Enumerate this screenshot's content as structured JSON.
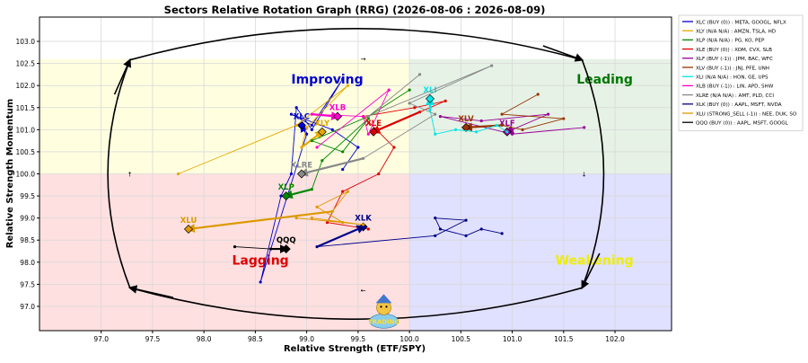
{
  "chart_data": {
    "type": "scatter",
    "title": "Sectors Relative Rotation Graph (RRG) (2026-08-06 : 2026-08-09)",
    "xlabel": "Relative Strength (ETF/SPY)",
    "ylabel": "Relative Strength Momentum",
    "xlim": [
      96.4,
      102.55
    ],
    "ylim": [
      96.45,
      103.55
    ],
    "xticks": [
      97.0,
      97.5,
      98.0,
      98.5,
      99.0,
      99.5,
      100.0,
      100.5,
      101.0,
      101.5,
      102.0
    ],
    "yticks": [
      97.0,
      97.5,
      98.0,
      98.5,
      99.0,
      99.5,
      100.0,
      100.5,
      101.0,
      101.5,
      102.0,
      102.5,
      103.0
    ],
    "grid": true,
    "legend_position": "outside-right",
    "quadrants": [
      {
        "name": "Improving",
        "label_x": 99.2,
        "label_y": 102.15,
        "label_color": "#0000cc",
        "fill": "#ffffe0"
      },
      {
        "name": "Leading",
        "label_x": 101.9,
        "label_y": 102.15,
        "label_color": "#007700",
        "fill": "#e6f2e6"
      },
      {
        "name": "Lagging",
        "label_x": 98.55,
        "label_y": 98.05,
        "label_color": "#dd0000",
        "fill": "#ffe0e0"
      },
      {
        "name": "Weakening",
        "label_x": 101.8,
        "label_y": 98.05,
        "label_color": "#eeee00",
        "fill": "#e0e0ff"
      }
    ],
    "series": [
      {
        "name": "XLC (BUY (0)) : META, GOOGL, NFLX",
        "label": "XLC",
        "color": "#0000cc",
        "points": [
          [
            99.35,
            100.1
          ],
          [
            99.5,
            100.6
          ],
          [
            99.25,
            101.0
          ],
          [
            98.85,
            101.35
          ],
          [
            99.05,
            101.1
          ],
          [
            99.35,
            102.15
          ],
          [
            99.05,
            101.0
          ],
          [
            98.9,
            101.5
          ],
          [
            98.85,
            100.0
          ],
          [
            98.75,
            99.5
          ],
          [
            98.55,
            97.55
          ],
          [
            99.0,
            100.9
          ],
          [
            98.95,
            101.1
          ]
        ]
      },
      {
        "name": "XLY (N/A N/A) : AMZN, TSLA, HD",
        "label": "XLY",
        "color": "#e6a800",
        "points": [
          [
            97.75,
            100.0
          ],
          [
            98.9,
            101.1
          ],
          [
            99.4,
            102.0
          ],
          [
            99.0,
            101.05
          ],
          [
            98.95,
            100.6
          ],
          [
            99.15,
            100.95
          ]
        ]
      },
      {
        "name": "XLP (N/A N/A) : PG, KO, PEP",
        "label": "XLP",
        "color": "#008800",
        "points": [
          [
            100.0,
            101.9
          ],
          [
            99.6,
            101.3
          ],
          [
            99.05,
            100.75
          ],
          [
            99.35,
            100.5
          ],
          [
            99.6,
            101.25
          ],
          [
            99.15,
            100.3
          ],
          [
            99.05,
            99.65
          ],
          [
            98.8,
            99.5
          ]
        ]
      },
      {
        "name": "XLE (BUY (0)) : XOM, CVX, SLB",
        "label": "XLE",
        "color": "#dd0000",
        "points": [
          [
            99.6,
            98.75
          ],
          [
            99.2,
            98.9
          ],
          [
            99.35,
            99.6
          ],
          [
            99.7,
            100.0
          ],
          [
            99.85,
            100.6
          ],
          [
            99.55,
            101.3
          ],
          [
            100.05,
            101.5
          ],
          [
            100.35,
            101.65
          ],
          [
            100.1,
            101.4
          ],
          [
            99.65,
            100.95
          ]
        ]
      },
      {
        "name": "XLF (BUY (-1)) : JPM, BAC, WFC",
        "label": "XLF",
        "color": "#990099",
        "points": [
          [
            101.7,
            101.05
          ],
          [
            101.0,
            100.9
          ],
          [
            100.3,
            101.3
          ],
          [
            100.7,
            101.2
          ],
          [
            101.35,
            101.35
          ],
          [
            101.0,
            101.0
          ],
          [
            100.95,
            100.95
          ]
        ]
      },
      {
        "name": "XLV (BUY (-1)) : JNJ, PFE, UNH",
        "label": "XLV",
        "color": "#993300",
        "points": [
          [
            101.25,
            101.8
          ],
          [
            100.9,
            101.35
          ],
          [
            101.5,
            101.25
          ],
          [
            101.1,
            101.0
          ],
          [
            100.9,
            101.1
          ],
          [
            100.55,
            101.05
          ]
        ]
      },
      {
        "name": "XLI (N/A N/A) : HON, GE, UPS",
        "label": "XLI",
        "color": "#00e5e5",
        "points": [
          [
            100.95,
            100.95
          ],
          [
            100.85,
            101.1
          ],
          [
            100.65,
            100.95
          ],
          [
            100.45,
            101.0
          ],
          [
            100.25,
            100.9
          ],
          [
            100.2,
            101.45
          ],
          [
            100.2,
            101.7
          ]
        ]
      },
      {
        "name": "XLB (BUY (-1)) : LIN, APD, SHW",
        "label": "XLB",
        "color": "#ff00cc",
        "points": [
          [
            99.1,
            100.6
          ],
          [
            99.8,
            101.9
          ],
          [
            99.6,
            100.9
          ],
          [
            99.55,
            101.3
          ],
          [
            99.05,
            101.35
          ],
          [
            99.3,
            101.3
          ]
        ]
      },
      {
        "name": "XLRE (N/A N/A) : AMT, PLD, CCI",
        "label": "XLRE",
        "color": "#888888",
        "points": [
          [
            100.1,
            102.25
          ],
          [
            99.6,
            101.3
          ],
          [
            100.8,
            102.45
          ],
          [
            100.0,
            101.6
          ],
          [
            100.25,
            101.35
          ],
          [
            99.55,
            100.35
          ],
          [
            98.95,
            100.0
          ]
        ]
      },
      {
        "name": "XLK (BUY (0)) : AAPL, MSFT, NVDA",
        "label": "XLK",
        "color": "#000088",
        "points": [
          [
            100.9,
            98.65
          ],
          [
            100.7,
            98.75
          ],
          [
            100.55,
            98.6
          ],
          [
            100.3,
            98.75
          ],
          [
            100.25,
            99.0
          ],
          [
            100.55,
            98.95
          ],
          [
            100.25,
            98.6
          ],
          [
            99.1,
            98.35
          ],
          [
            99.55,
            98.8
          ]
        ]
      },
      {
        "name": "XLU (STRONG_SELL (-1)) : NEE, DUK, SO",
        "label": "XLU",
        "color": "#dd9900",
        "points": [
          [
            99.05,
            99.0
          ],
          [
            99.55,
            98.85
          ],
          [
            98.9,
            99.0
          ],
          [
            99.35,
            98.9
          ],
          [
            99.1,
            99.25
          ],
          [
            99.4,
            99.6
          ],
          [
            99.25,
            99.15
          ],
          [
            97.85,
            98.75
          ]
        ]
      },
      {
        "name": "QQQ (BUY (0)) : AAPL, MSFT, GOOGL",
        "label": "QQQ",
        "color": "#000000",
        "points": [
          [
            98.3,
            98.35
          ],
          [
            98.65,
            98.3
          ],
          [
            98.8,
            98.3
          ]
        ]
      }
    ]
  },
  "watermark": {
    "logo_text": "TRADING"
  }
}
